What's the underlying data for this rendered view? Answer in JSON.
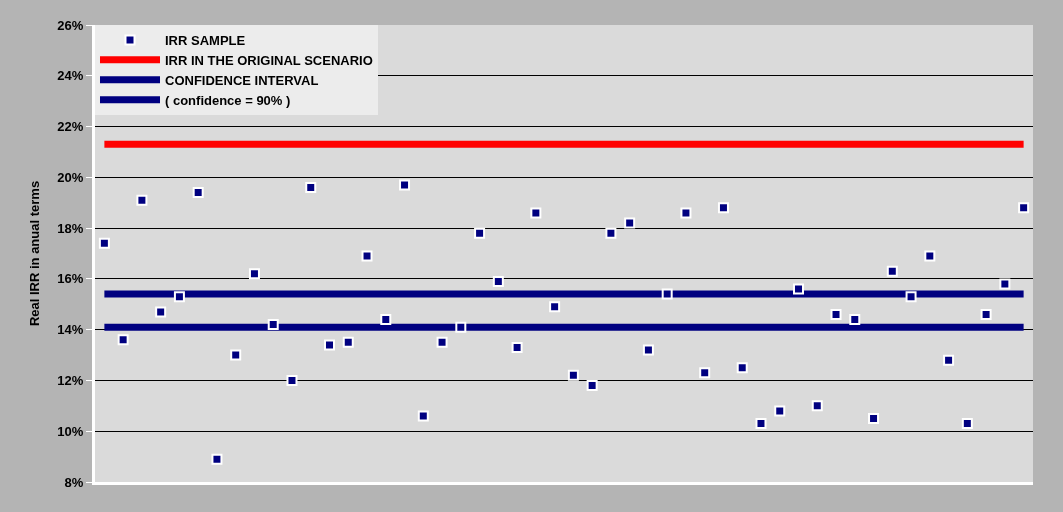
{
  "chart_data": {
    "type": "scatter",
    "ylabel": "Real IRR in anual terms",
    "categories": [
      null,
      null,
      null,
      null,
      null,
      null,
      null,
      null,
      null,
      null,
      null,
      null,
      null,
      null,
      null,
      null,
      null,
      null,
      null,
      null,
      null,
      null,
      null,
      null,
      null,
      null,
      null,
      null,
      null,
      null,
      null,
      null,
      null,
      null,
      null,
      null,
      null,
      null,
      null,
      null,
      null,
      null,
      null,
      null,
      null,
      null,
      null,
      null,
      null,
      null
    ],
    "series": [
      {
        "name": "IRR SAMPLE",
        "marker": "square",
        "color": "#000080",
        "values": [
          17.4,
          13.6,
          19.1,
          14.7,
          15.3,
          19.4,
          8.9,
          13.0,
          16.2,
          14.2,
          12.0,
          19.6,
          13.4,
          13.5,
          16.9,
          14.4,
          19.7,
          10.6,
          13.5,
          14.1,
          17.8,
          15.9,
          13.3,
          18.6,
          14.9,
          12.2,
          11.8,
          17.8,
          18.2,
          13.2,
          15.4,
          18.6,
          12.3,
          18.8,
          12.5,
          10.3,
          10.8,
          15.6,
          11.0,
          14.6,
          14.4,
          10.5,
          16.3,
          15.3,
          16.9,
          12.8,
          10.3,
          14.6,
          15.8,
          18.8
        ]
      },
      {
        "name": "IRR IN THE ORIGINAL SCENARIO",
        "type": "line",
        "marker": "none",
        "line_style": "solid",
        "color": "#ff0000",
        "values": [
          21.3,
          21.3,
          21.3,
          21.3,
          21.3,
          21.3,
          21.3,
          21.3,
          21.3,
          21.3,
          21.3,
          21.3,
          21.3,
          21.3,
          21.3,
          21.3,
          21.3,
          21.3,
          21.3,
          21.3,
          21.3,
          21.3,
          21.3,
          21.3,
          21.3,
          21.3,
          21.3,
          21.3,
          21.3,
          21.3,
          21.3,
          21.3,
          21.3,
          21.3,
          21.3,
          21.3,
          21.3,
          21.3,
          21.3,
          21.3,
          21.3,
          21.3,
          21.3,
          21.3,
          21.3,
          21.3,
          21.3,
          21.3,
          21.3,
          21.3
        ]
      },
      {
        "name": "CONFIDENCE INTERVAL",
        "type": "line",
        "marker": "none",
        "line_style": "solid",
        "color": "#000080",
        "values": [
          15.4,
          15.4,
          15.4,
          15.4,
          15.4,
          15.4,
          15.4,
          15.4,
          15.4,
          15.4,
          15.4,
          15.4,
          15.4,
          15.4,
          15.4,
          15.4,
          15.4,
          15.4,
          15.4,
          15.4,
          15.4,
          15.4,
          15.4,
          15.4,
          15.4,
          15.4,
          15.4,
          15.4,
          15.4,
          15.4,
          15.4,
          15.4,
          15.4,
          15.4,
          15.4,
          15.4,
          15.4,
          15.4,
          15.4,
          15.4,
          15.4,
          15.4,
          15.4,
          15.4,
          15.4,
          15.4,
          15.4,
          15.4,
          15.4,
          15.4
        ]
      },
      {
        "name": "( confidence = 90% )",
        "type": "line",
        "marker": "none",
        "line_style": "solid",
        "color": "#000080",
        "values": [
          14.1,
          14.1,
          14.1,
          14.1,
          14.1,
          14.1,
          14.1,
          14.1,
          14.1,
          14.1,
          14.1,
          14.1,
          14.1,
          14.1,
          14.1,
          14.1,
          14.1,
          14.1,
          14.1,
          14.1,
          14.1,
          14.1,
          14.1,
          14.1,
          14.1,
          14.1,
          14.1,
          14.1,
          14.1,
          14.1,
          14.1,
          14.1,
          14.1,
          14.1,
          14.1,
          14.1,
          14.1,
          14.1,
          14.1,
          14.1,
          14.1,
          14.1,
          14.1,
          14.1,
          14.1,
          14.1,
          14.1,
          14.1,
          14.1,
          14.1
        ]
      }
    ],
    "ylim": [
      8,
      26
    ],
    "yticks": [
      {
        "value": 8,
        "label": "8%"
      },
      {
        "value": 10,
        "label": "10%"
      },
      {
        "value": 12,
        "label": "12%"
      },
      {
        "value": 14,
        "label": "14%"
      },
      {
        "value": 16,
        "label": "16%"
      },
      {
        "value": 18,
        "label": "18%"
      },
      {
        "value": 20,
        "label": "20%"
      },
      {
        "value": 22,
        "label": "22%"
      },
      {
        "value": 24,
        "label": "24%"
      },
      {
        "value": 26,
        "label": "26%"
      }
    ],
    "grid": "y",
    "legend": "top left",
    "tick_labels": "y"
  }
}
